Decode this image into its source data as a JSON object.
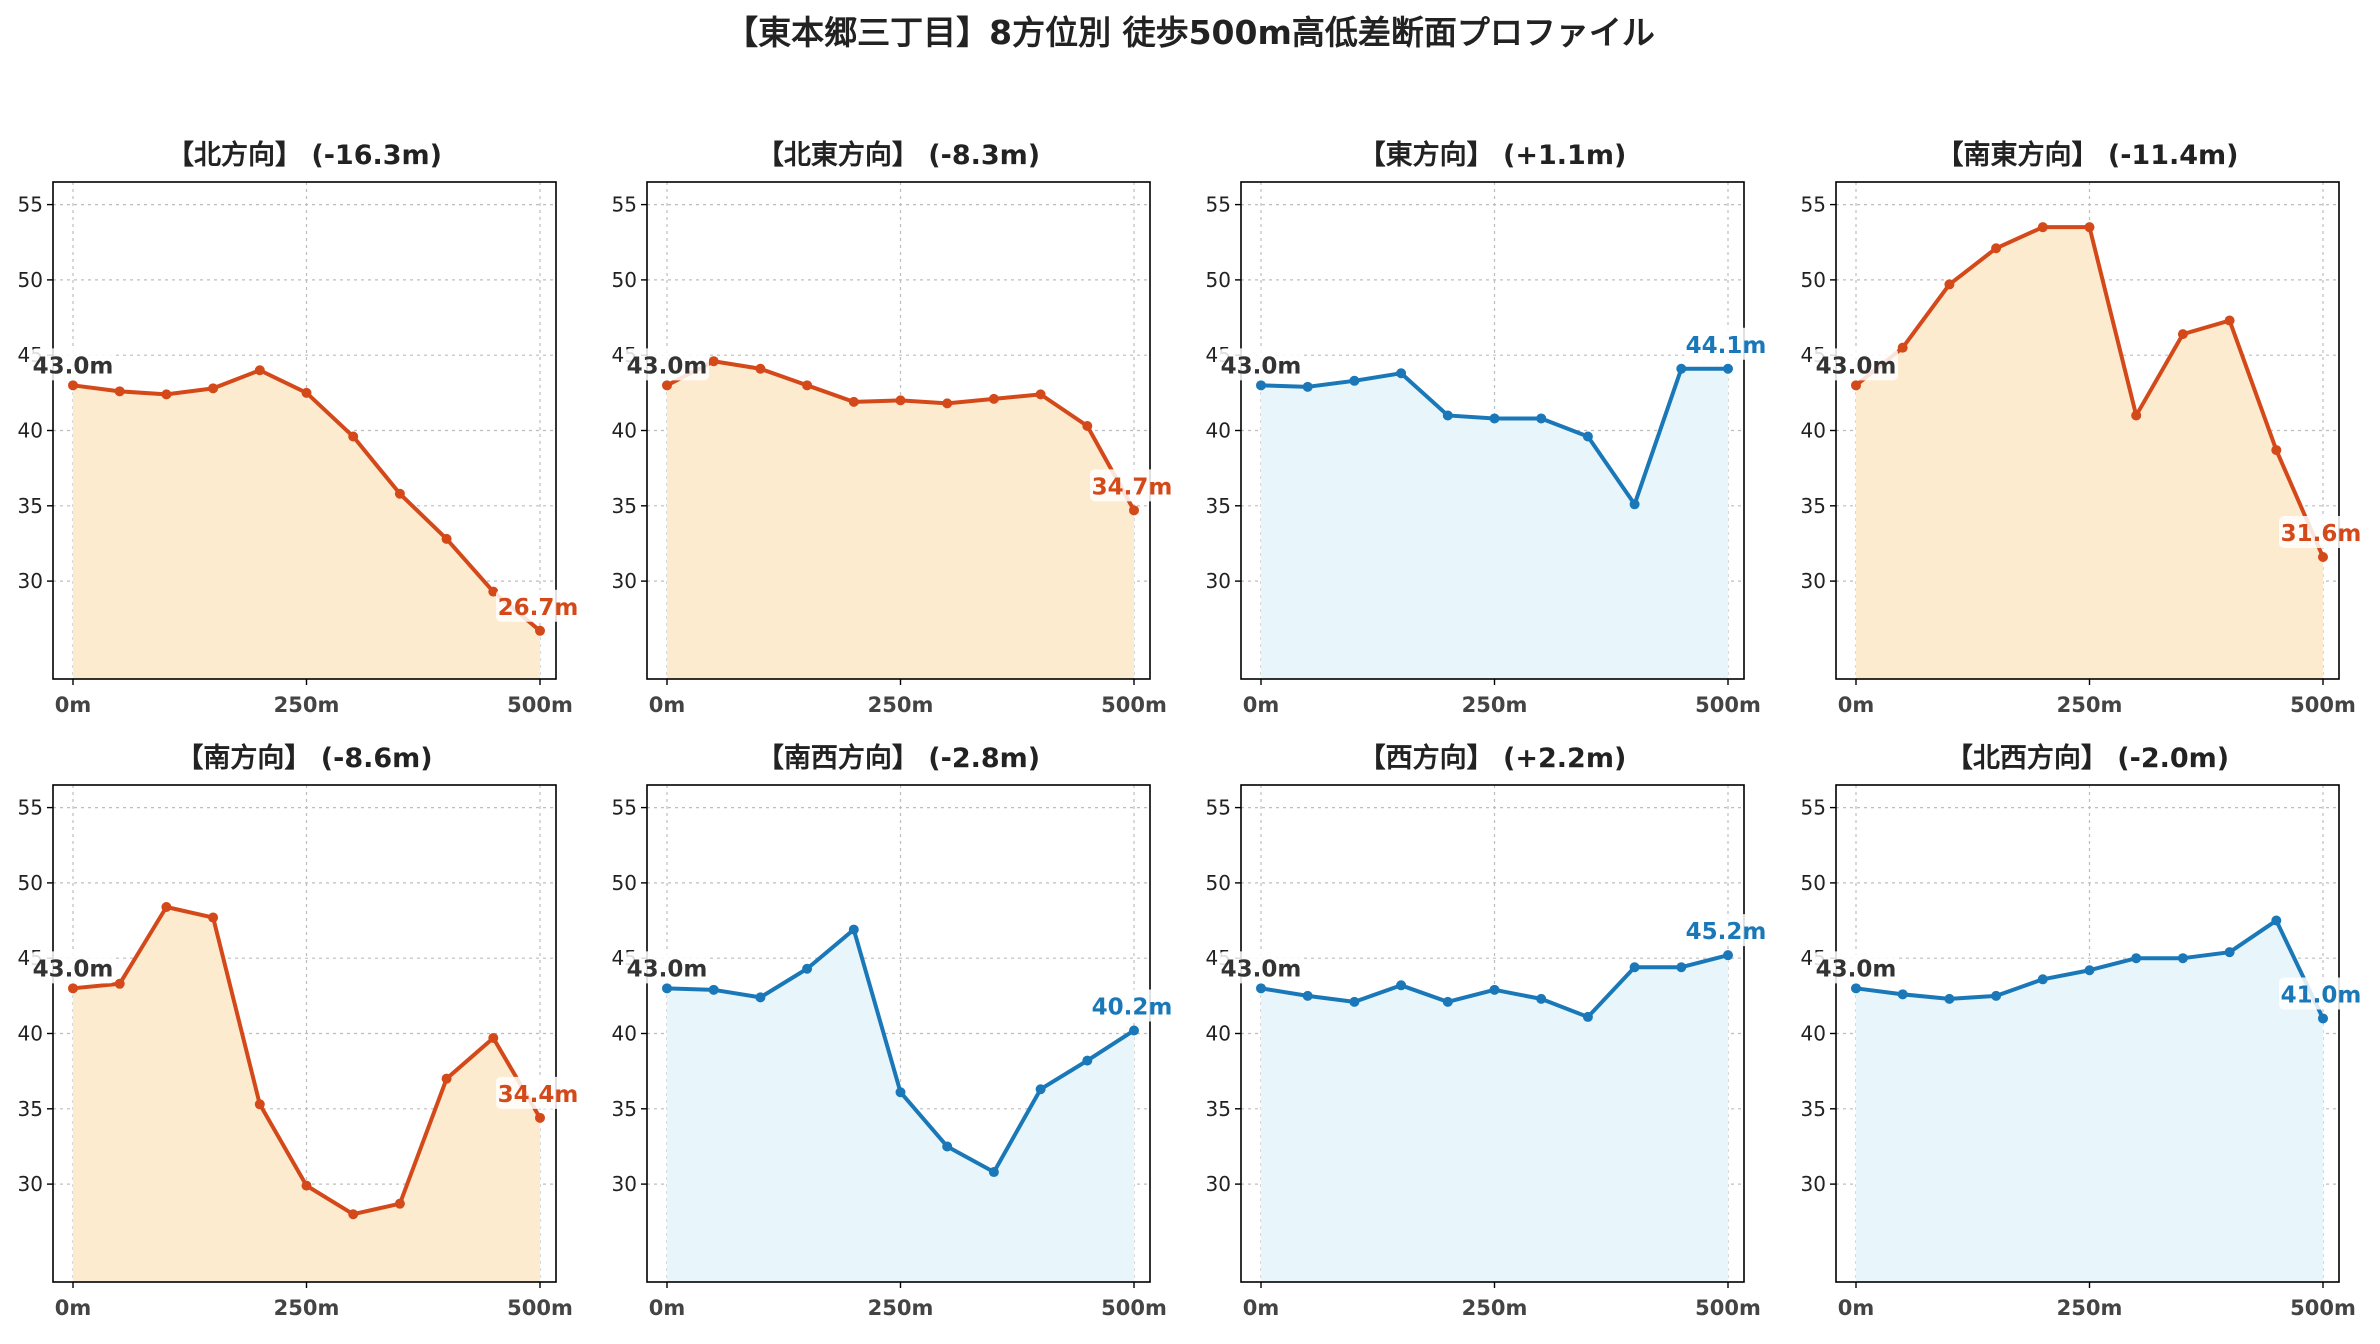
{
  "figure": {
    "title": "【東本郷三丁目】8方位別 徒歩500m高低差断面プロファイル"
  },
  "colors": {
    "descent_line": "#d4491a",
    "descent_fill": "#fdebd0",
    "ascent_line": "#1a78b8",
    "ascent_fill": "#e8f5fb",
    "grid": "#bdbdbd",
    "text": "#222222"
  },
  "chart_data": [
    {
      "type": "area",
      "title": "【北方向】 (-16.3m)",
      "color": "descent",
      "x": [
        0,
        50,
        100,
        150,
        200,
        250,
        300,
        350,
        400,
        450,
        500
      ],
      "y": [
        43.0,
        42.6,
        42.4,
        42.8,
        44.0,
        42.5,
        39.6,
        35.8,
        32.8,
        29.3,
        26.7
      ],
      "xticks": [
        "0m",
        "250m",
        "500m"
      ],
      "yticks": [
        "30",
        "35",
        "40",
        "45",
        "50",
        "55"
      ],
      "xlim": [
        0,
        500
      ],
      "ylim": [
        25,
        55
      ],
      "start_label": "43.0m",
      "end_label": "26.7m",
      "grid": true
    },
    {
      "type": "area",
      "title": "【北東方向】 (-8.3m)",
      "color": "descent",
      "x": [
        0,
        50,
        100,
        150,
        200,
        250,
        300,
        350,
        400,
        450,
        500
      ],
      "y": [
        43.0,
        44.6,
        44.1,
        43.0,
        41.9,
        42.0,
        41.8,
        42.1,
        42.4,
        40.3,
        34.7
      ],
      "xticks": [
        "0m",
        "250m",
        "500m"
      ],
      "yticks": [
        "30",
        "35",
        "40",
        "45",
        "50",
        "55"
      ],
      "xlim": [
        0,
        500
      ],
      "ylim": [
        25,
        55
      ],
      "start_label": "43.0m",
      "end_label": "34.7m",
      "grid": true
    },
    {
      "type": "area",
      "title": "【東方向】 (+1.1m)",
      "color": "ascent",
      "x": [
        0,
        50,
        100,
        150,
        200,
        250,
        300,
        350,
        400,
        450,
        500
      ],
      "y": [
        43.0,
        42.9,
        43.3,
        43.8,
        41.0,
        40.8,
        40.8,
        39.6,
        35.1,
        44.1,
        44.1
      ],
      "xticks": [
        "0m",
        "250m",
        "500m"
      ],
      "yticks": [
        "30",
        "35",
        "40",
        "45",
        "50",
        "55"
      ],
      "xlim": [
        0,
        500
      ],
      "ylim": [
        25,
        55
      ],
      "start_label": "43.0m",
      "end_label": "44.1m",
      "grid": true
    },
    {
      "type": "area",
      "title": "【南東方向】 (-11.4m)",
      "color": "descent",
      "x": [
        0,
        50,
        100,
        150,
        200,
        250,
        300,
        350,
        400,
        450,
        500
      ],
      "y": [
        43.0,
        45.5,
        49.7,
        52.1,
        53.5,
        53.5,
        41.0,
        46.4,
        47.3,
        38.7,
        31.6
      ],
      "xticks": [
        "0m",
        "250m",
        "500m"
      ],
      "yticks": [
        "30",
        "35",
        "40",
        "45",
        "50",
        "55"
      ],
      "xlim": [
        0,
        500
      ],
      "ylim": [
        25,
        55
      ],
      "start_label": "43.0m",
      "end_label": "31.6m",
      "grid": true
    },
    {
      "type": "area",
      "title": "【南方向】 (-8.6m)",
      "color": "descent",
      "x": [
        0,
        50,
        100,
        150,
        200,
        250,
        300,
        350,
        400,
        450,
        500
      ],
      "y": [
        43.0,
        43.3,
        48.4,
        47.7,
        35.3,
        29.9,
        28.0,
        28.7,
        37.0,
        39.7,
        34.4
      ],
      "xticks": [
        "0m",
        "250m",
        "500m"
      ],
      "yticks": [
        "30",
        "35",
        "40",
        "45",
        "50",
        "55"
      ],
      "xlim": [
        0,
        500
      ],
      "ylim": [
        25,
        55
      ],
      "start_label": "43.0m",
      "end_label": "34.4m",
      "grid": true
    },
    {
      "type": "area",
      "title": "【南西方向】 (-2.8m)",
      "color": "ascent",
      "x": [
        0,
        50,
        100,
        150,
        200,
        250,
        300,
        350,
        400,
        450,
        500
      ],
      "y": [
        43.0,
        42.9,
        42.4,
        44.3,
        46.9,
        36.1,
        32.5,
        30.8,
        36.3,
        38.2,
        40.2
      ],
      "xticks": [
        "0m",
        "250m",
        "500m"
      ],
      "yticks": [
        "30",
        "35",
        "40",
        "45",
        "50",
        "55"
      ],
      "xlim": [
        0,
        500
      ],
      "ylim": [
        25,
        55
      ],
      "start_label": "43.0m",
      "end_label": "40.2m",
      "grid": true
    },
    {
      "type": "area",
      "title": "【西方向】 (+2.2m)",
      "color": "ascent",
      "x": [
        0,
        50,
        100,
        150,
        200,
        250,
        300,
        350,
        400,
        450,
        500
      ],
      "y": [
        43.0,
        42.5,
        42.1,
        43.2,
        42.1,
        42.9,
        42.3,
        41.1,
        44.4,
        44.4,
        45.2
      ],
      "xticks": [
        "0m",
        "250m",
        "500m"
      ],
      "yticks": [
        "30",
        "35",
        "40",
        "45",
        "50",
        "55"
      ],
      "xlim": [
        0,
        500
      ],
      "ylim": [
        25,
        55
      ],
      "start_label": "43.0m",
      "end_label": "45.2m",
      "grid": true
    },
    {
      "type": "area",
      "title": "【北西方向】 (-2.0m)",
      "color": "ascent",
      "x": [
        0,
        50,
        100,
        150,
        200,
        250,
        300,
        350,
        400,
        450,
        500
      ],
      "y": [
        43.0,
        42.6,
        42.3,
        42.5,
        43.6,
        44.2,
        45.0,
        45.0,
        45.4,
        47.5,
        41.0
      ],
      "xticks": [
        "0m",
        "250m",
        "500m"
      ],
      "yticks": [
        "30",
        "35",
        "40",
        "45",
        "50",
        "55"
      ],
      "xlim": [
        0,
        500
      ],
      "ylim": [
        25,
        55
      ],
      "start_label": "43.0m",
      "end_label": "41.0m",
      "grid": true
    }
  ]
}
